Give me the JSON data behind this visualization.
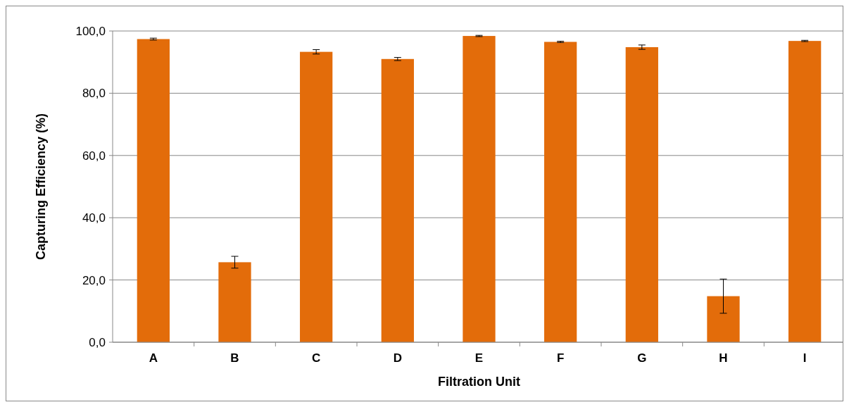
{
  "chart_data": {
    "type": "bar",
    "xlabel": "Filtration Unit",
    "ylabel": "Capturing Efficiency (%)",
    "categories": [
      "A",
      "B",
      "C",
      "D",
      "E",
      "F",
      "G",
      "H",
      "I"
    ],
    "values": [
      97.4,
      25.7,
      93.3,
      91.0,
      98.4,
      96.5,
      94.8,
      14.8,
      96.8
    ],
    "errors": [
      0.3,
      1.9,
      0.7,
      0.5,
      0.2,
      0.2,
      0.7,
      5.5,
      0.2
    ],
    "color": "#e36c0a",
    "ylim": [
      0,
      100
    ],
    "yticks": [
      {
        "value": 0,
        "label": "0,0"
      },
      {
        "value": 20,
        "label": "20,0"
      },
      {
        "value": 40,
        "label": "40,0"
      },
      {
        "value": 60,
        "label": "60,0"
      },
      {
        "value": 80,
        "label": "80,0"
      },
      {
        "value": 100,
        "label": "100,0"
      }
    ],
    "grid": "y"
  }
}
